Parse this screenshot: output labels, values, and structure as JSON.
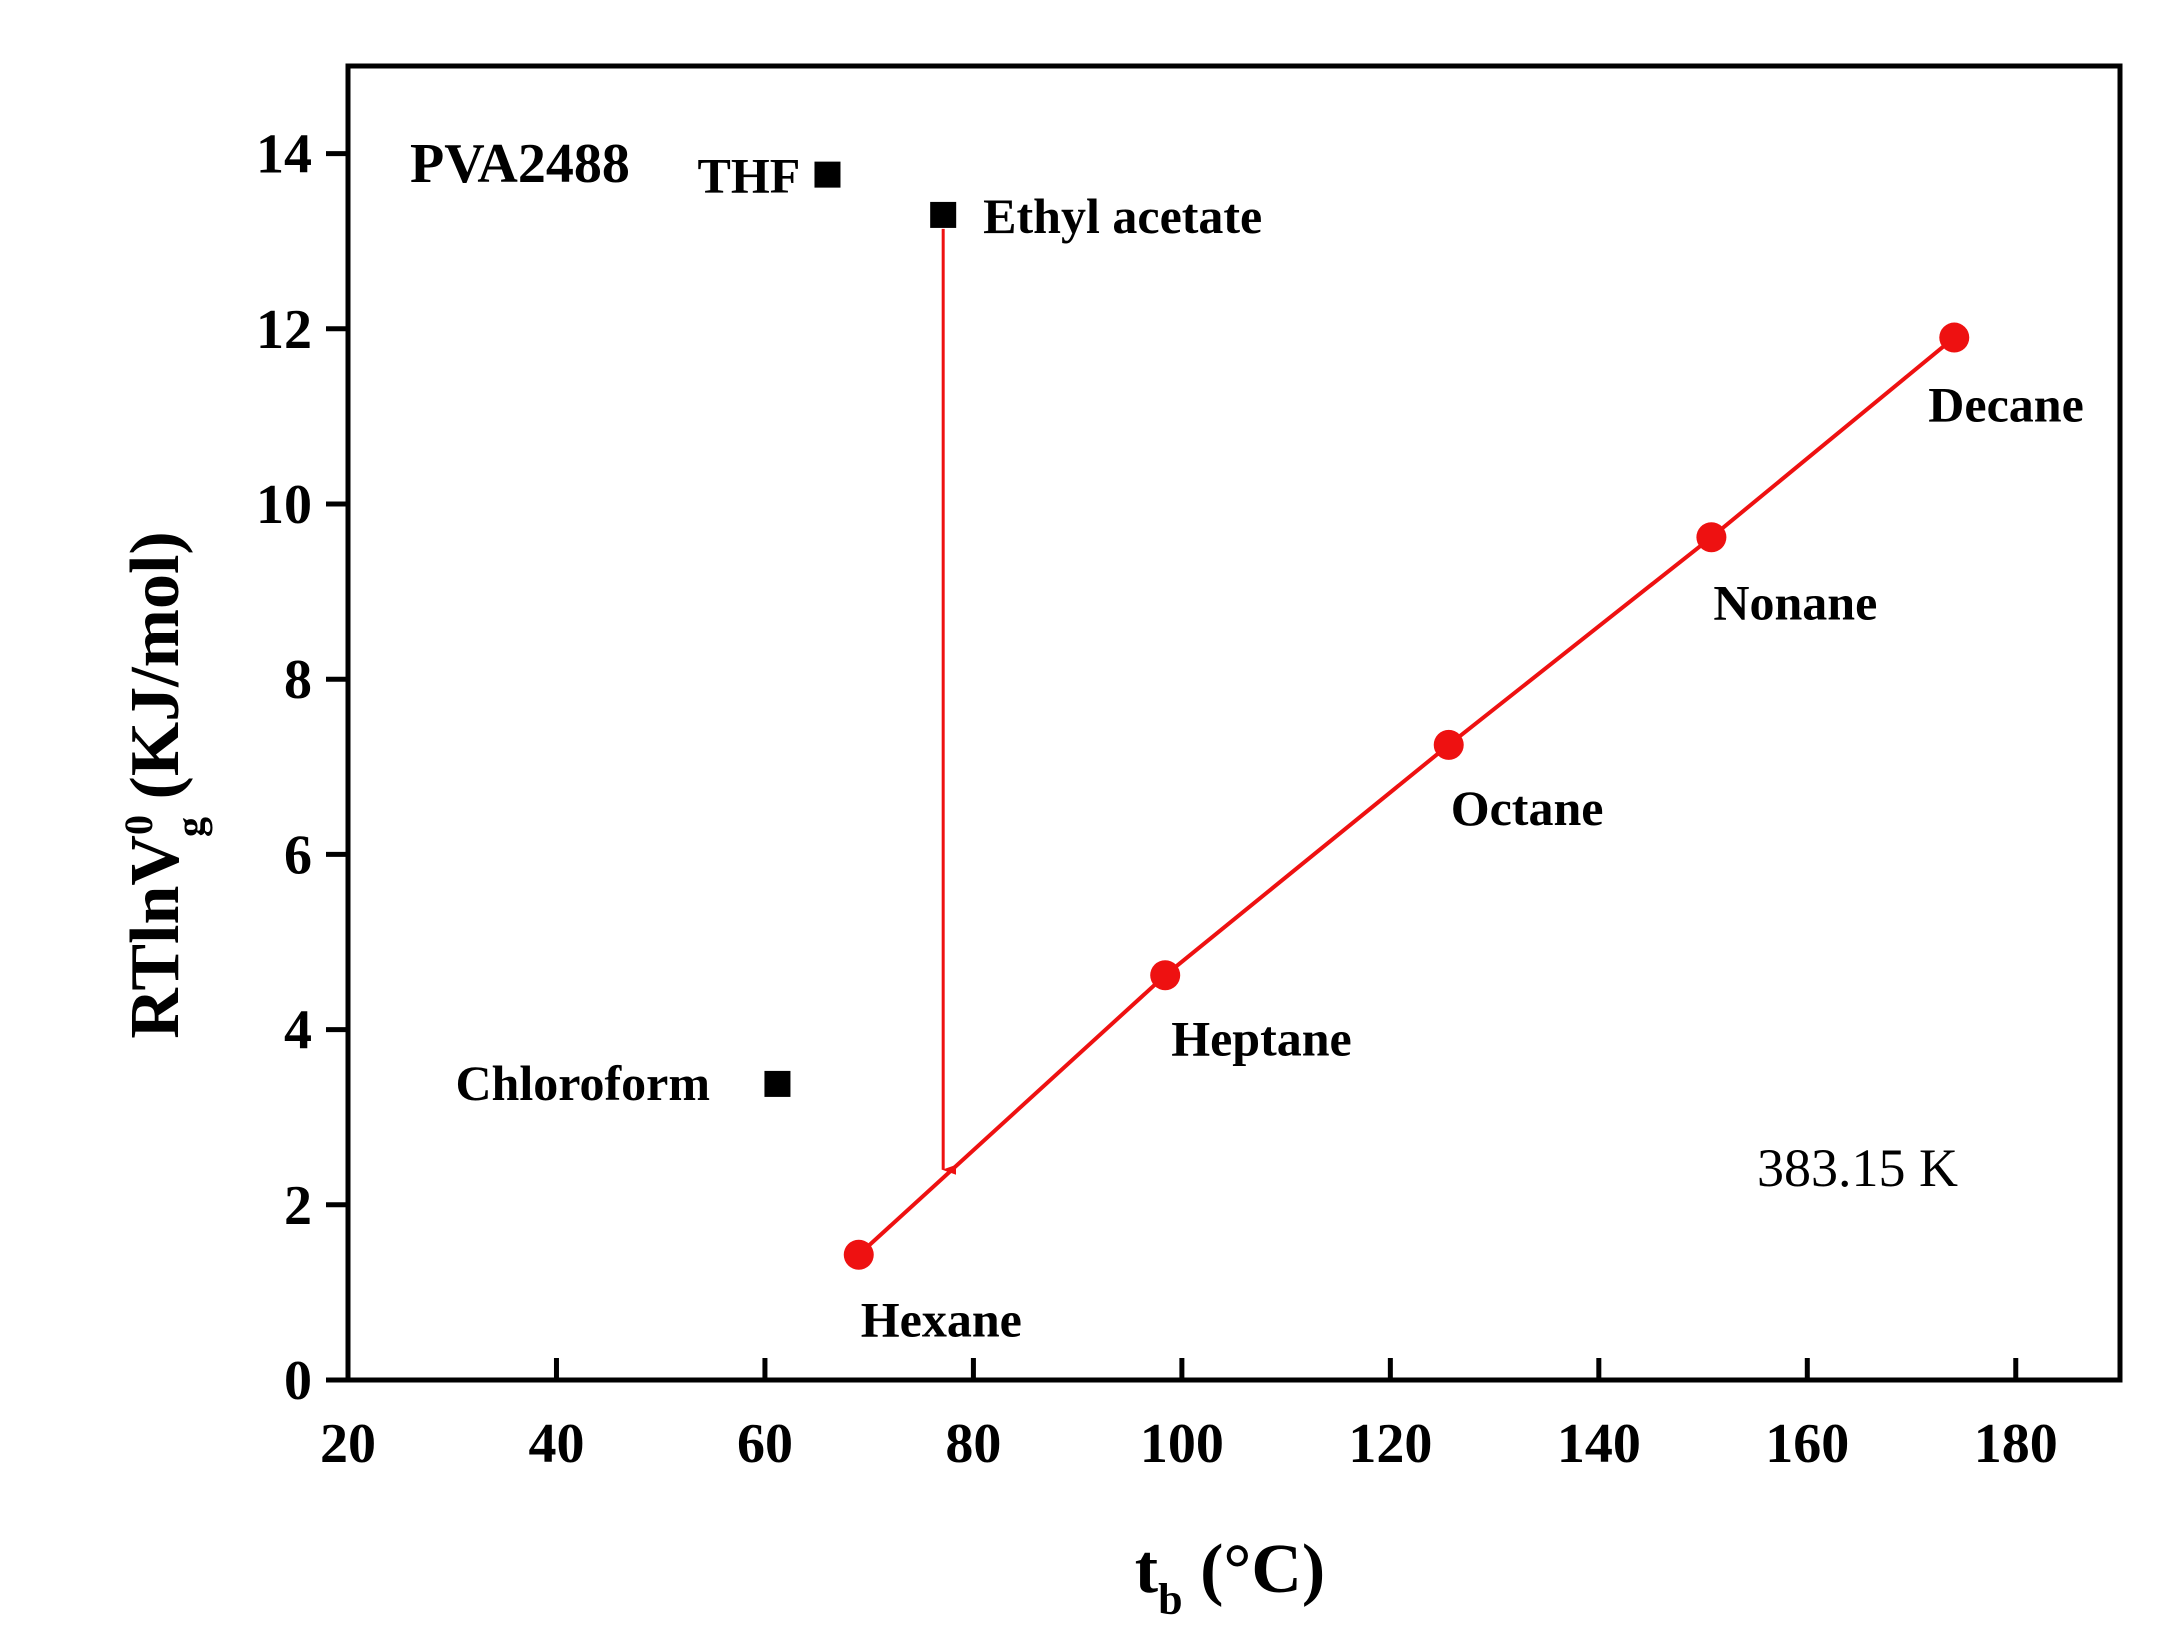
{
  "chart_data": {
    "type": "scatter",
    "sample_label": "PVA2488",
    "temperature_label": "383.15 K",
    "xlabel_main": "t",
    "xlabel_sub": "b",
    "xlabel_unit": " (°C)",
    "ylabel_main": "RTlnV",
    "ylabel_sup": "0",
    "ylabel_sub": "g",
    "ylabel_unit": " (KJ/mol)",
    "xlim": [
      20,
      190
    ],
    "ylim": [
      0,
      15
    ],
    "x_ticks": [
      20,
      40,
      60,
      80,
      100,
      120,
      140,
      160,
      180
    ],
    "y_ticks": [
      0,
      2,
      4,
      6,
      8,
      10,
      12,
      14
    ],
    "series": [
      {
        "marker": "circle",
        "color": "#ee1111",
        "fit_line": true,
        "points": [
          {
            "label": "Hexane",
            "x": 69,
            "y": 1.43
          },
          {
            "label": "Heptane",
            "x": 98.4,
            "y": 4.62
          },
          {
            "label": "Octane",
            "x": 125.6,
            "y": 7.25
          },
          {
            "label": "Nonane",
            "x": 150.8,
            "y": 9.62
          },
          {
            "label": "Decane",
            "x": 174.1,
            "y": 11.9
          }
        ]
      },
      {
        "marker": "square",
        "color": "#000000",
        "fit_line": false,
        "points": [
          {
            "label": "THF",
            "x": 66,
            "y": 13.76
          },
          {
            "label": "Ethyl acetate",
            "x": 77.1,
            "y": 13.3
          },
          {
            "label": "Chloroform",
            "x": 61.2,
            "y": 3.38
          }
        ]
      }
    ],
    "arrow": {
      "x": 77.1,
      "y_start": 13.3,
      "y_end": 2.4,
      "color": "#ee1111"
    },
    "grid": false
  }
}
